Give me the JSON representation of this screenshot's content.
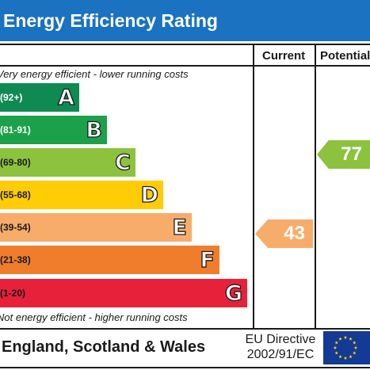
{
  "header": {
    "title": "Energy Efficiency Rating"
  },
  "columns": {
    "current": "Current",
    "potential": "Potential"
  },
  "notes": {
    "top": "Very energy efficient - lower running costs",
    "bottom": "Not energy efficient - higher running costs"
  },
  "bands": [
    {
      "letter": "A",
      "range": "(92+)",
      "color": "#0f8a53"
    },
    {
      "letter": "B",
      "range": "(81-91)",
      "color": "#1ba14a"
    },
    {
      "letter": "C",
      "range": "(69-80)",
      "color": "#8dc23e"
    },
    {
      "letter": "D",
      "range": "(55-68)",
      "color": "#ffcc06"
    },
    {
      "letter": "E",
      "range": "(39-54)",
      "color": "#f8ac6a"
    },
    {
      "letter": "F",
      "range": "(21-38)",
      "color": "#ef7d2c"
    },
    {
      "letter": "G",
      "range": "(1-20)",
      "color": "#e8213b"
    }
  ],
  "ratings": {
    "current": {
      "value": "43",
      "color": "#f8ac6a"
    },
    "potential": {
      "value": "77",
      "color": "#8dc23e"
    }
  },
  "footer": {
    "country": "England, Scotland & Wales",
    "directive_line1": "EU Directive",
    "directive_line2": "2002/91/EC",
    "flag_icon": "eu-flag-icon"
  }
}
